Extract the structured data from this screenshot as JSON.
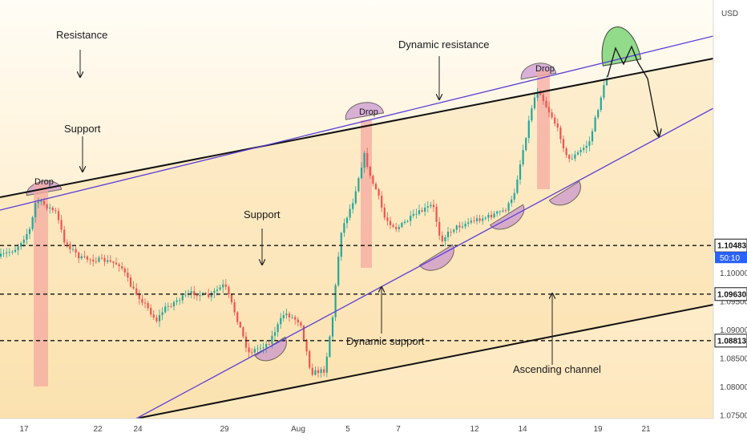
{
  "chart_data": {
    "type": "candlestick",
    "currency": "USD",
    "x_tick_labels": [
      "17",
      "22",
      "24",
      "29",
      "Aug",
      "5",
      "7",
      "12",
      "14",
      "19",
      "21"
    ],
    "y_tick_labels": [
      "1.10000",
      "1.09500",
      "1.09000",
      "1.08500",
      "1.08000",
      "1.07500"
    ],
    "ylim": [
      1.0745,
      1.1125
    ],
    "last_price_label": "1.10483",
    "countdown_label": "50:10",
    "levels": [
      {
        "label": "1.10483",
        "value": 1.10483
      },
      {
        "label": "1.09630",
        "value": 1.0963
      },
      {
        "label": "1.08813",
        "value": 1.08813
      }
    ],
    "annotations": [
      {
        "text": "Resistance"
      },
      {
        "text": "Dynamic resistance"
      },
      {
        "text": "Support"
      },
      {
        "text": "Support"
      },
      {
        "text": "Dynamic support"
      },
      {
        "text": "Ascending channel"
      },
      {
        "text": "Drop"
      },
      {
        "text": "Drop"
      },
      {
        "text": "Drop"
      }
    ],
    "colors": {
      "up": "#26a69a",
      "down": "#ef5350",
      "trend": "#5b3fd6",
      "channel": "#111111",
      "highlight": "#c48bd0",
      "green_zone": "#7ed67a",
      "drop_bar": "#f4a9a0"
    }
  }
}
